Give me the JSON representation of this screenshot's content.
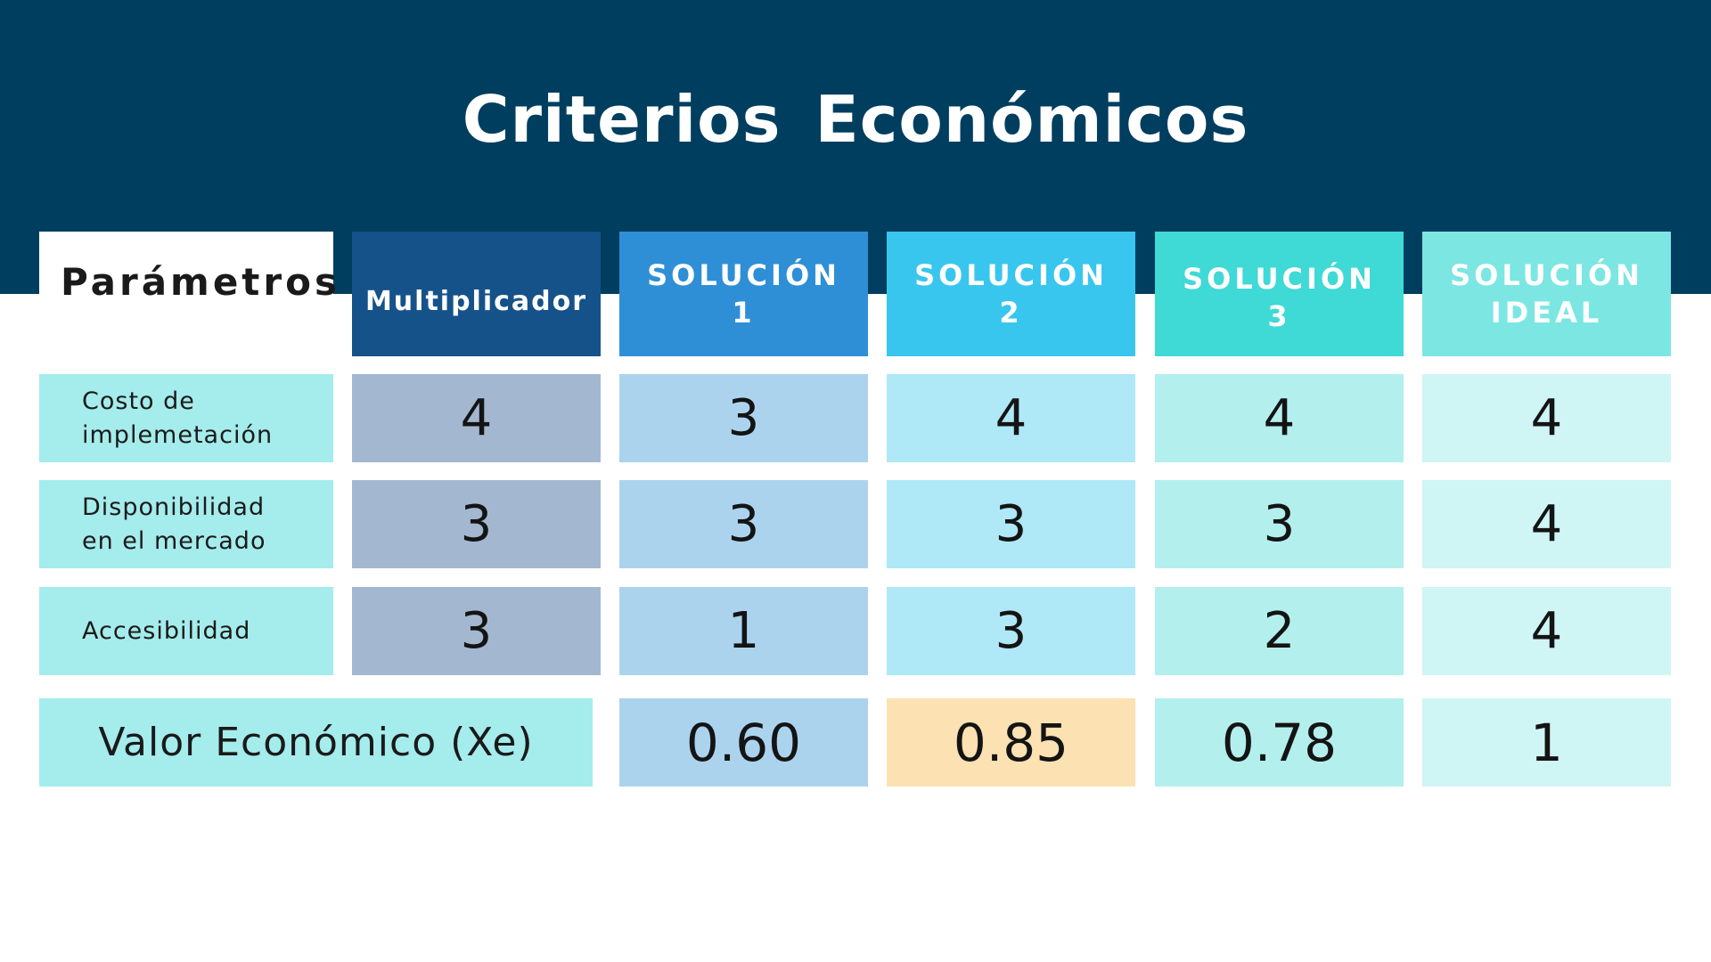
{
  "title": "Criterios Económicos",
  "headers": {
    "parametros": "Parámetros",
    "multiplicador": "Multiplicador",
    "s1": "SOLUCIÓN\n1",
    "s2": "SOLUCIÓN\n2",
    "s3": "SOLUCIÓN\n3",
    "ideal": "SOLUCIÓN\nIDEAL"
  },
  "rows": [
    {
      "label": "Costo de\nimplemetación",
      "mult": "4",
      "s1": "3",
      "s2": "4",
      "s3": "4",
      "ideal": "4"
    },
    {
      "label": "Disponibilidad\nen el mercado",
      "mult": "3",
      "s1": "3",
      "s2": "3",
      "s3": "3",
      "ideal": "4"
    },
    {
      "label": "Accesibilidad",
      "mult": "3",
      "s1": "1",
      "s2": "3",
      "s3": "2",
      "ideal": "4"
    }
  ],
  "total": {
    "label": "Valor Económico (Xe)",
    "s1": "0.60",
    "s2": "0.85",
    "s3": "0.78",
    "ideal": "1"
  },
  "colors": {
    "banner": "#003e5f",
    "header_mult": "#15528a",
    "header_s1": "#2e8fd6",
    "header_s2": "#38c6ee",
    "header_s3": "#3fd9d6",
    "header_ideal": "#7ce6e3",
    "label_bg": "#a5ecec",
    "mult_bg": "#a3b8d0",
    "s1_bg": "#abd3ee",
    "s2_bg": "#afe8f6",
    "s3_bg": "#b3efed",
    "ideal_bg": "#cff5f4",
    "highlight": "#fce1b2"
  }
}
